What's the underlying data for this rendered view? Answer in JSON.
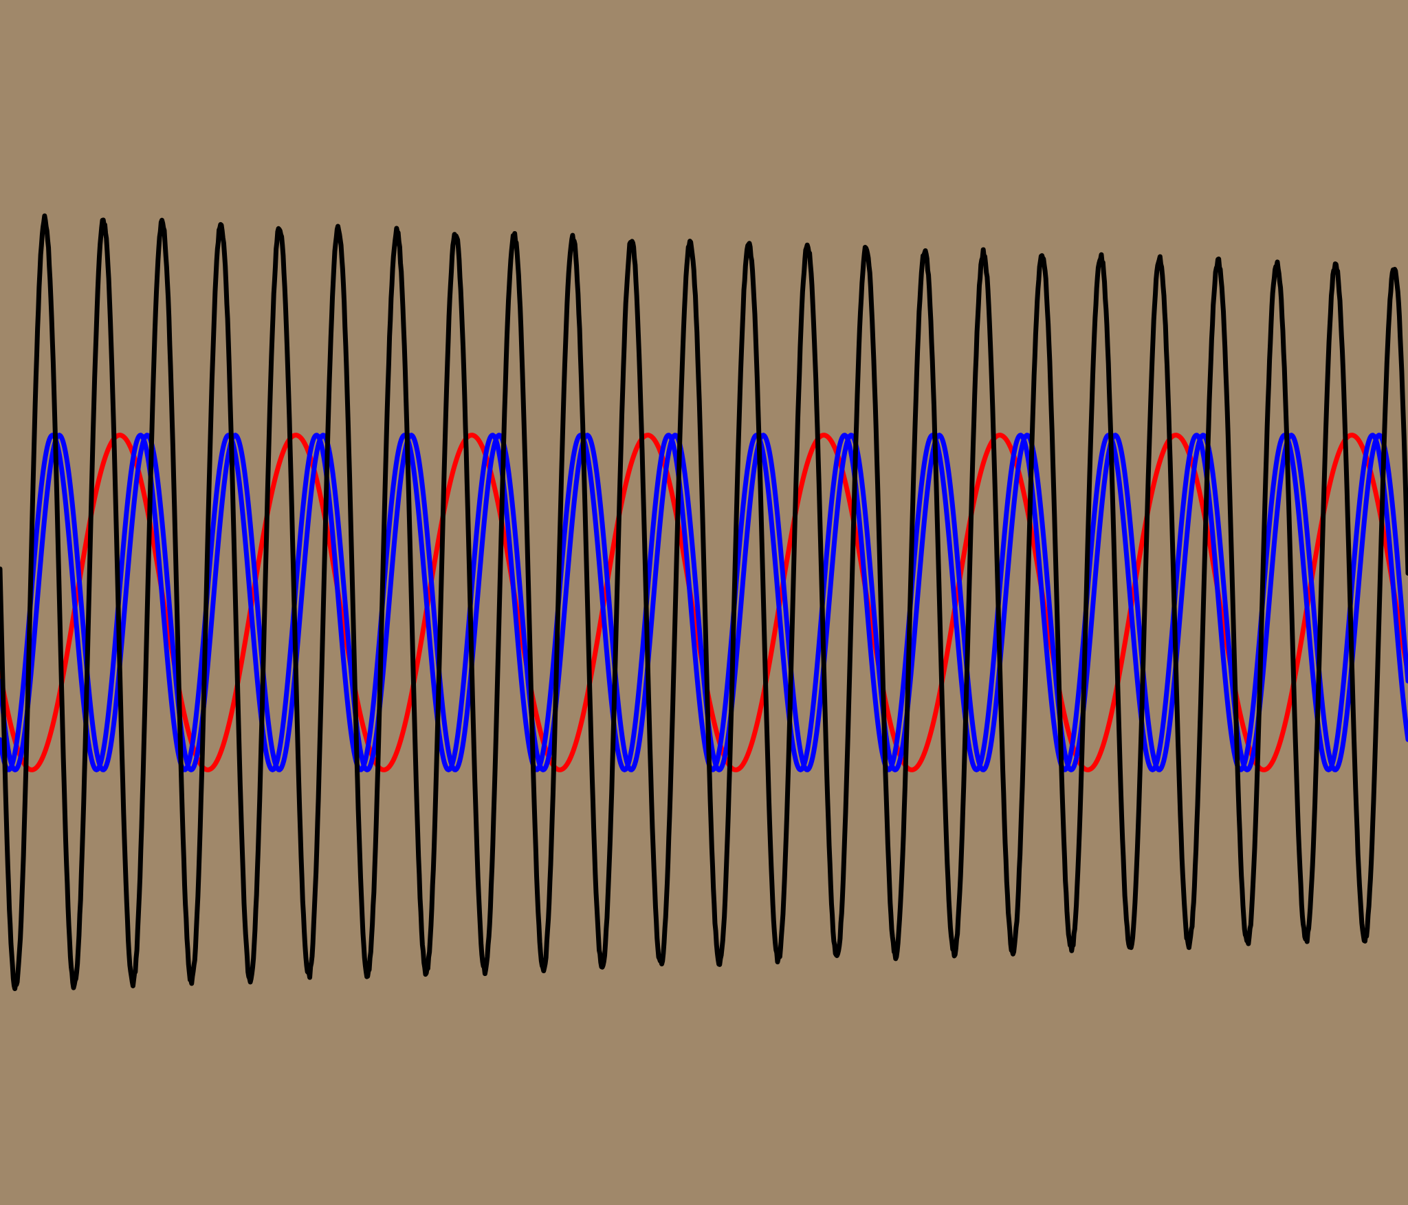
{
  "background_color": "#a0886a",
  "chart_data": {
    "type": "line",
    "title": "",
    "xlabel": "",
    "ylabel": "",
    "axes_visible": false,
    "grid": false,
    "legend": "none",
    "x_range": [
      0,
      16
    ],
    "y_range": [
      -3.6,
      3.6
    ],
    "series": [
      {
        "color": "#ff0000",
        "kind": "sine",
        "amplitude": 1,
        "cycles": 8,
        "phase_deg": 205
      },
      {
        "color": "#0000ff",
        "kind": "sine",
        "amplitude": 1,
        "cycles": 16,
        "phase_deg": 208
      },
      {
        "color": "#0000ff",
        "kind": "sine",
        "amplitude": 1,
        "cycles": 16,
        "phase_deg": 235
      },
      {
        "color": "#000000",
        "kind": "noisy-sine",
        "amplitude_start": 2.3,
        "amplitude_end": 2.0,
        "cycles": 24,
        "phase_deg": 175
      }
    ]
  }
}
